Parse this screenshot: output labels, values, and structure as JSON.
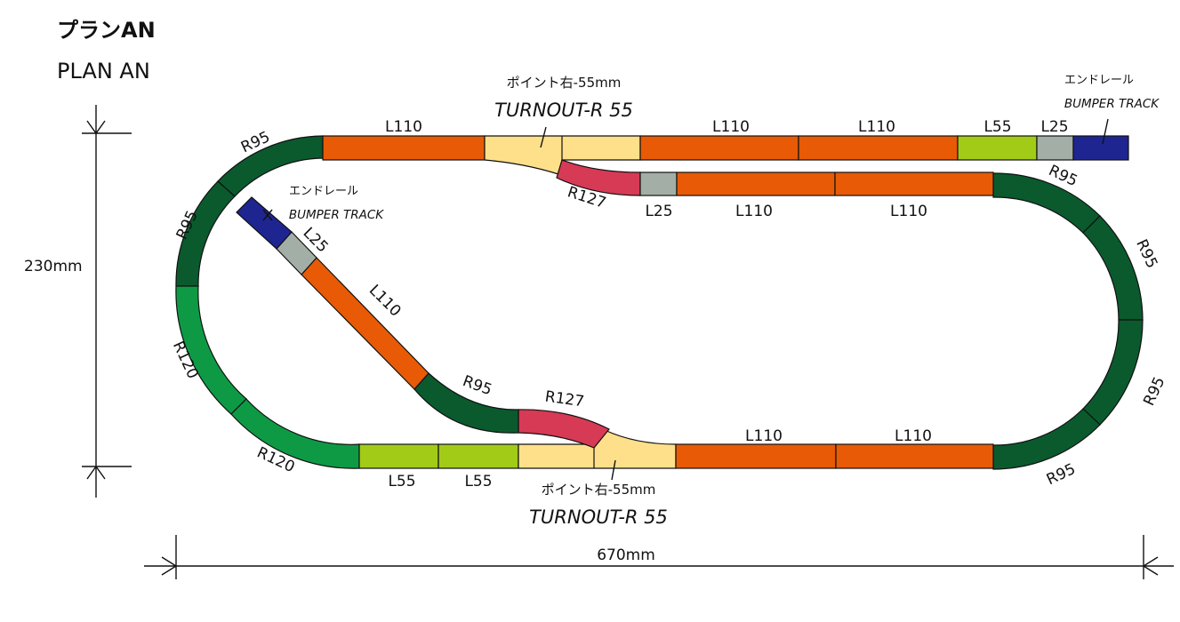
{
  "header": {
    "title_jp": "プランAN",
    "title_en": "PLAN AN"
  },
  "colors": {
    "L110": "#E85A06",
    "L55": "#A2CB18",
    "L25": "#A3AEA6",
    "R95": "#0A5A2E",
    "R120": "#0E9A45",
    "R127": "#D63A54",
    "turnout": "#FFE08A",
    "bumper": "#1E2591",
    "outline": "#111111"
  },
  "labels": {
    "r95": "R95",
    "r120": "R120",
    "r127": "R127",
    "l110": "L110",
    "l55": "L55",
    "l25": "L25",
    "turnout_jp": "ポイント右-55mm",
    "turnout_en": "TURNOUT-R 55",
    "bumper_jp": "エンドレール",
    "bumper_en": "BUMPER TRACK"
  },
  "dimensions": {
    "width": "670mm",
    "height": "230mm"
  }
}
